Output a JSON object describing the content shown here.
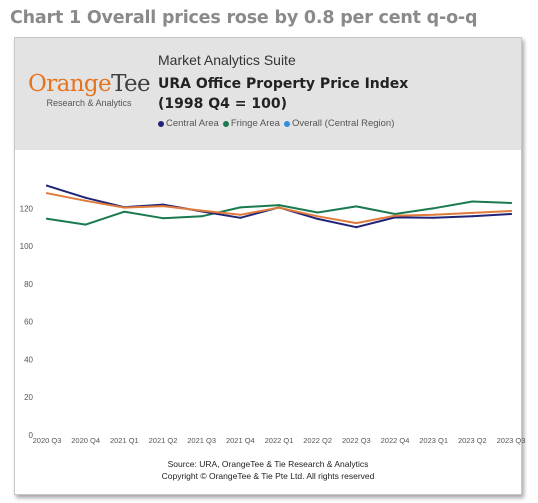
{
  "heading": "Chart 1 Overall prices rose by 0.8 per cent q-o-q",
  "logo": {
    "word_part1": "Orange",
    "word_part2": "Tee",
    "tagline": "Research & Analytics"
  },
  "suite_label": "Market Analytics Suite",
  "title_line1": "URA Office Property Price Index",
  "title_line2": "(1998 Q4 = 100)",
  "source_line1": "Source: URA, OrangeTee & Tie Research & Analytics",
  "source_line2": "Copyright © OrangeTee & Tie Pte Ltd. All rights reserved",
  "colors": {
    "central": "#1f2478",
    "fringe": "#197a4f",
    "overall": "#e07b3b",
    "overall_legend_dot": "#2e8fe0",
    "logo_orange": "#e8731d"
  },
  "chart_data": {
    "type": "line",
    "title": "URA Office Property Price Index (1998 Q4 = 100)",
    "categories": [
      "2020 Q3",
      "2020 Q4",
      "2021 Q1",
      "2021 Q2",
      "2021 Q3",
      "2021 Q4",
      "2022 Q1",
      "2022 Q2",
      "2022 Q3",
      "2022 Q4",
      "2023 Q1",
      "2023 Q2",
      "2023 Q3"
    ],
    "yticks": [
      0,
      20,
      40,
      60,
      80,
      100,
      120
    ],
    "ylim": [
      0,
      135
    ],
    "grid": false,
    "legend_position": "top",
    "series": [
      {
        "name": "Central Area",
        "values": [
          132.0,
          125.6,
          120.6,
          122.0,
          118.4,
          115.0,
          120.5,
          114.4,
          110.0,
          115.2,
          115.0,
          115.8,
          117.0
        ]
      },
      {
        "name": "Fringe Area",
        "values": [
          114.5,
          111.4,
          118.2,
          114.8,
          115.8,
          120.5,
          121.7,
          117.8,
          121.0,
          117.0,
          120.0,
          123.6,
          122.8
        ]
      },
      {
        "name": "Overall (Central Region)",
        "values": [
          128.0,
          124.0,
          120.4,
          121.2,
          118.8,
          116.6,
          120.4,
          115.8,
          112.2,
          116.1,
          116.6,
          117.6,
          118.6
        ]
      }
    ]
  }
}
